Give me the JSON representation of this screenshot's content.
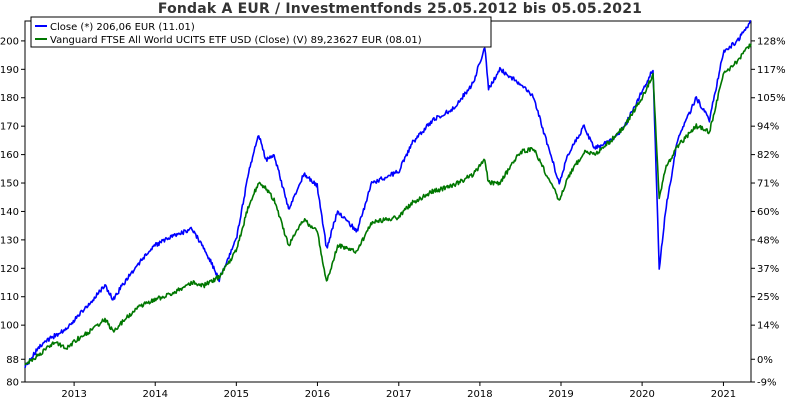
{
  "chart_data": {
    "type": "line",
    "title": "Fondak A EUR / Investmentfonds 25.05.2012 bis 05.05.2021",
    "x_range": [
      "2012-05-25",
      "2021-05-05"
    ],
    "x_ticks": [
      "2013",
      "2014",
      "2015",
      "2016",
      "2017",
      "2018",
      "2019",
      "2020",
      "2021"
    ],
    "y_left_ticks": [
      "80",
      "88",
      "100",
      "110",
      "120",
      "130",
      "140",
      "150",
      "160",
      "170",
      "180",
      "190",
      "200"
    ],
    "y_left_values": [
      80,
      88,
      100,
      110,
      120,
      130,
      140,
      150,
      160,
      170,
      180,
      190,
      200
    ],
    "y_right_ticks": [
      "-9%",
      "0%",
      "14%",
      "25%",
      "37%",
      "48%",
      "60%",
      "71%",
      "82%",
      "94%",
      "105%",
      "117%",
      "128%"
    ],
    "ylim": [
      80,
      207
    ],
    "grid": false,
    "legend_position": "top-left",
    "series": [
      {
        "name": "Close (*) 206,06 EUR (11.01)",
        "color": "#0000ff",
        "points": [
          [
            "2012-05-25",
            85
          ],
          [
            "2012-08-01",
            93
          ],
          [
            "2012-10-01",
            96
          ],
          [
            "2012-12-01",
            99
          ],
          [
            "2013-01-15",
            103
          ],
          [
            "2013-03-15",
            108
          ],
          [
            "2013-05-20",
            114
          ],
          [
            "2013-06-25",
            109
          ],
          [
            "2013-09-01",
            117
          ],
          [
            "2013-11-01",
            123
          ],
          [
            "2013-12-31",
            128
          ],
          [
            "2014-03-15",
            131
          ],
          [
            "2014-06-15",
            134
          ],
          [
            "2014-08-10",
            127
          ],
          [
            "2014-10-16",
            116
          ],
          [
            "2014-12-31",
            130
          ],
          [
            "2015-03-01",
            155
          ],
          [
            "2015-04-12",
            167
          ],
          [
            "2015-05-15",
            158
          ],
          [
            "2015-06-20",
            160
          ],
          [
            "2015-08-24",
            141
          ],
          [
            "2015-11-01",
            153
          ],
          [
            "2015-12-31",
            149
          ],
          [
            "2016-02-11",
            127
          ],
          [
            "2016-04-01",
            140
          ],
          [
            "2016-06-27",
            133
          ],
          [
            "2016-09-01",
            150
          ],
          [
            "2016-12-31",
            154
          ],
          [
            "2017-03-01",
            164
          ],
          [
            "2017-06-01",
            172
          ],
          [
            "2017-09-01",
            176
          ],
          [
            "2017-12-01",
            185
          ],
          [
            "2018-01-23",
            198
          ],
          [
            "2018-02-09",
            183
          ],
          [
            "2018-04-01",
            190
          ],
          [
            "2018-07-01",
            185
          ],
          [
            "2018-09-01",
            180
          ],
          [
            "2018-10-15",
            168
          ],
          [
            "2018-12-24",
            150
          ],
          [
            "2019-02-01",
            160
          ],
          [
            "2019-04-15",
            170
          ],
          [
            "2019-06-01",
            162
          ],
          [
            "2019-08-15",
            165
          ],
          [
            "2019-10-15",
            170
          ],
          [
            "2019-12-31",
            182
          ],
          [
            "2020-02-19",
            190
          ],
          [
            "2020-03-18",
            120
          ],
          [
            "2020-04-15",
            140
          ],
          [
            "2020-06-08",
            165
          ],
          [
            "2020-09-01",
            180
          ],
          [
            "2020-10-30",
            172
          ],
          [
            "2020-12-31",
            196
          ],
          [
            "2021-03-05",
            200
          ],
          [
            "2021-05-05",
            207
          ]
        ]
      },
      {
        "name": "Vanguard FTSE All World UCITS ETF USD (Close) (V) 89,23627 EUR (08.01)",
        "color": "#007700",
        "points": [
          [
            "2012-05-25",
            86
          ],
          [
            "2012-08-01",
            90
          ],
          [
            "2012-10-01",
            94
          ],
          [
            "2012-12-01",
            92
          ],
          [
            "2013-01-15",
            95
          ],
          [
            "2013-03-15",
            98
          ],
          [
            "2013-05-20",
            102
          ],
          [
            "2013-06-25",
            98
          ],
          [
            "2013-09-01",
            103
          ],
          [
            "2013-11-01",
            107
          ],
          [
            "2013-12-31",
            109
          ],
          [
            "2014-03-15",
            111
          ],
          [
            "2014-06-15",
            115
          ],
          [
            "2014-08-10",
            114
          ],
          [
            "2014-10-16",
            117
          ],
          [
            "2014-12-31",
            126
          ],
          [
            "2015-03-01",
            143
          ],
          [
            "2015-04-12",
            150
          ],
          [
            "2015-05-15",
            148
          ],
          [
            "2015-06-20",
            144
          ],
          [
            "2015-08-24",
            128
          ],
          [
            "2015-11-01",
            137
          ],
          [
            "2015-12-31",
            133
          ],
          [
            "2016-02-11",
            115
          ],
          [
            "2016-04-01",
            128
          ],
          [
            "2016-06-27",
            126
          ],
          [
            "2016-09-01",
            136
          ],
          [
            "2016-12-31",
            138
          ],
          [
            "2017-03-01",
            143
          ],
          [
            "2017-06-01",
            147
          ],
          [
            "2017-09-01",
            149
          ],
          [
            "2017-12-01",
            153
          ],
          [
            "2018-01-23",
            158
          ],
          [
            "2018-02-09",
            150
          ],
          [
            "2018-04-01",
            150
          ],
          [
            "2018-07-01",
            161
          ],
          [
            "2018-09-01",
            162
          ],
          [
            "2018-10-15",
            155
          ],
          [
            "2018-12-24",
            144
          ],
          [
            "2019-02-01",
            152
          ],
          [
            "2019-04-15",
            161
          ],
          [
            "2019-06-01",
            160
          ],
          [
            "2019-08-15",
            165
          ],
          [
            "2019-10-15",
            170
          ],
          [
            "2019-12-31",
            180
          ],
          [
            "2020-02-19",
            188
          ],
          [
            "2020-03-18",
            145
          ],
          [
            "2020-04-15",
            155
          ],
          [
            "2020-06-08",
            163
          ],
          [
            "2020-09-01",
            170
          ],
          [
            "2020-10-30",
            168
          ],
          [
            "2020-12-31",
            188
          ],
          [
            "2021-03-05",
            193
          ],
          [
            "2021-05-05",
            199
          ]
        ]
      }
    ]
  }
}
